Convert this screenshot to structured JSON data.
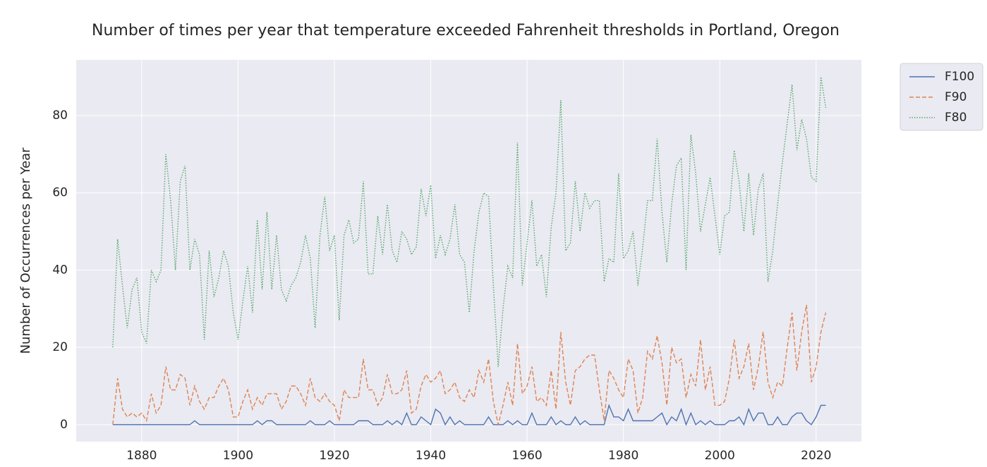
{
  "chart_data": {
    "type": "line",
    "title": "Number of times per year that temperature exceeded Fahrenheit thresholds in Portland, Oregon",
    "y_label": "Number of Occurrences per Year",
    "x": [
      1874,
      1875,
      1876,
      1877,
      1878,
      1879,
      1880,
      1881,
      1882,
      1883,
      1884,
      1885,
      1886,
      1887,
      1888,
      1889,
      1890,
      1891,
      1892,
      1893,
      1894,
      1895,
      1896,
      1897,
      1898,
      1899,
      1900,
      1901,
      1902,
      1903,
      1904,
      1905,
      1906,
      1907,
      1908,
      1909,
      1910,
      1911,
      1912,
      1913,
      1914,
      1915,
      1916,
      1917,
      1918,
      1919,
      1920,
      1921,
      1922,
      1923,
      1924,
      1925,
      1926,
      1927,
      1928,
      1929,
      1930,
      1931,
      1932,
      1933,
      1934,
      1935,
      1936,
      1937,
      1938,
      1939,
      1940,
      1941,
      1942,
      1943,
      1944,
      1945,
      1946,
      1947,
      1948,
      1949,
      1950,
      1951,
      1952,
      1953,
      1954,
      1955,
      1956,
      1957,
      1958,
      1959,
      1960,
      1961,
      1962,
      1963,
      1964,
      1965,
      1966,
      1967,
      1968,
      1969,
      1970,
      1971,
      1972,
      1973,
      1974,
      1975,
      1976,
      1977,
      1978,
      1979,
      1980,
      1981,
      1982,
      1983,
      1984,
      1985,
      1986,
      1987,
      1988,
      1989,
      1990,
      1991,
      1992,
      1993,
      1994,
      1995,
      1996,
      1997,
      1998,
      1999,
      2000,
      2001,
      2002,
      2003,
      2004,
      2005,
      2006,
      2007,
      2008,
      2009,
      2010,
      2011,
      2012,
      2013,
      2014,
      2015,
      2016,
      2017,
      2018,
      2019,
      2020,
      2021,
      2022
    ],
    "series": [
      {
        "name": "F100",
        "color": "#4c72b0",
        "linestyle": "solid",
        "values": [
          0,
          0,
          0,
          0,
          0,
          0,
          0,
          0,
          0,
          0,
          0,
          0,
          0,
          0,
          0,
          0,
          0,
          1,
          0,
          0,
          0,
          0,
          0,
          0,
          0,
          0,
          0,
          0,
          0,
          0,
          1,
          0,
          1,
          1,
          0,
          0,
          0,
          0,
          0,
          0,
          0,
          1,
          0,
          0,
          0,
          1,
          0,
          0,
          0,
          0,
          0,
          1,
          1,
          1,
          0,
          0,
          0,
          1,
          0,
          1,
          0,
          3,
          0,
          0,
          2,
          1,
          0,
          4,
          3,
          0,
          2,
          0,
          1,
          0,
          0,
          0,
          0,
          0,
          2,
          0,
          0,
          0,
          1,
          0,
          1,
          0,
          0,
          3,
          0,
          0,
          0,
          2,
          0,
          1,
          0,
          0,
          2,
          0,
          1,
          0,
          0,
          0,
          0,
          5,
          2,
          2,
          1,
          4,
          1,
          1,
          1,
          1,
          1,
          2,
          3,
          0,
          2,
          1,
          4,
          0,
          3,
          0,
          1,
          0,
          1,
          0,
          0,
          0,
          1,
          1,
          2,
          0,
          4,
          1,
          3,
          3,
          0,
          0,
          2,
          0,
          0,
          2,
          3,
          3,
          1,
          0,
          2,
          5,
          5
        ]
      },
      {
        "name": "F90",
        "color": "#dd8452",
        "linestyle": "dashed",
        "values": [
          0,
          12,
          4,
          2,
          3,
          2,
          3,
          1,
          8,
          3,
          5,
          15,
          9,
          9,
          13,
          12,
          5,
          10,
          6,
          4,
          7,
          7,
          10,
          12,
          9,
          2,
          2,
          6,
          9,
          4,
          7,
          5,
          8,
          8,
          8,
          4,
          6,
          10,
          10,
          8,
          5,
          12,
          7,
          6,
          8,
          6,
          5,
          1,
          9,
          7,
          7,
          7,
          17,
          9,
          9,
          5,
          7,
          13,
          8,
          8,
          9,
          14,
          3,
          4,
          10,
          13,
          11,
          12,
          14,
          8,
          9,
          11,
          7,
          6,
          9,
          7,
          14,
          11,
          17,
          6,
          0,
          5,
          11,
          5,
          21,
          8,
          10,
          15,
          6,
          7,
          5,
          14,
          4,
          24,
          11,
          5,
          14,
          15,
          17,
          18,
          18,
          9,
          1,
          14,
          12,
          9,
          7,
          17,
          14,
          3,
          7,
          19,
          17,
          23,
          16,
          5,
          20,
          16,
          17,
          7,
          13,
          10,
          22,
          9,
          15,
          5,
          5,
          6,
          12,
          22,
          12,
          15,
          21,
          9,
          15,
          24,
          11,
          7,
          11,
          10,
          20,
          29,
          14,
          24,
          31,
          11,
          15,
          24,
          29
        ]
      },
      {
        "name": "F80",
        "color": "#55a868",
        "linestyle": "dotted",
        "values": [
          20,
          48,
          36,
          25,
          35,
          38,
          24,
          21,
          40,
          37,
          40,
          70,
          58,
          40,
          63,
          67,
          40,
          48,
          44,
          22,
          45,
          33,
          38,
          45,
          41,
          29,
          22,
          32,
          41,
          29,
          53,
          35,
          55,
          35,
          49,
          35,
          32,
          36,
          38,
          42,
          49,
          43,
          25,
          49,
          59,
          45,
          49,
          27,
          49,
          53,
          47,
          48,
          63,
          39,
          39,
          54,
          44,
          57,
          45,
          42,
          50,
          48,
          44,
          46,
          61,
          54,
          62,
          43,
          49,
          44,
          48,
          57,
          44,
          42,
          29,
          45,
          55,
          60,
          59,
          36,
          15,
          30,
          41,
          38,
          73,
          36,
          47,
          58,
          41,
          44,
          33,
          51,
          60,
          84,
          45,
          47,
          63,
          50,
          60,
          56,
          58,
          58,
          37,
          43,
          42,
          65,
          43,
          45,
          50,
          36,
          46,
          58,
          58,
          74,
          55,
          42,
          57,
          67,
          69,
          40,
          75,
          65,
          50,
          57,
          64,
          54,
          44,
          54,
          55,
          71,
          63,
          50,
          65,
          49,
          61,
          65,
          37,
          45,
          57,
          68,
          78,
          88,
          71,
          79,
          74,
          64,
          63,
          90,
          82
        ]
      }
    ],
    "xlim": [
      1866.4,
      2029.4
    ],
    "xticks": [
      1880,
      1900,
      1920,
      1940,
      1960,
      1980,
      2000,
      2020
    ],
    "ylim": [
      -4.4,
      94.4
    ],
    "yticks": [
      0,
      20,
      40,
      60,
      80
    ],
    "grid": true,
    "legend": "outside upper right"
  }
}
